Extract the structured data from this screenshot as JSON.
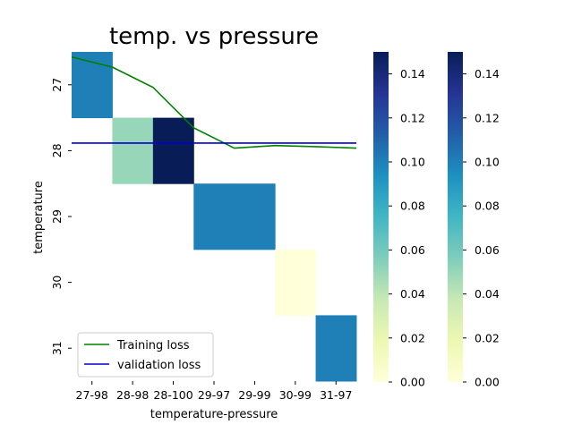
{
  "chart_data": {
    "type": "heatmap",
    "title": "temp. vs pressure",
    "xlabel": "temperature-pressure",
    "ylabel": "temperature",
    "x_categories": [
      "27-98",
      "28-98",
      "28-100",
      "29-97",
      "29-99",
      "30-99",
      "31-97"
    ],
    "y_categories": [
      "27",
      "28",
      "29",
      "30",
      "31"
    ],
    "cells": [
      {
        "row": "27",
        "col": "27-98",
        "value": 0.1
      },
      {
        "row": "28",
        "col": "28-98",
        "value": 0.05
      },
      {
        "row": "28",
        "col": "28-100",
        "value": 0.15
      },
      {
        "row": "29",
        "col": "29-97",
        "value": 0.1
      },
      {
        "row": "29",
        "col": "29-99",
        "value": 0.1
      },
      {
        "row": "30",
        "col": "30-99",
        "value": 0.0
      },
      {
        "row": "31",
        "col": "31-97",
        "value": 0.1
      }
    ],
    "color_range": [
      0,
      0.15
    ],
    "colormap": "YlGnBu",
    "colorbar_ticks": [
      "0.00",
      "0.02",
      "0.04",
      "0.06",
      "0.08",
      "0.10",
      "0.12",
      "0.14"
    ],
    "overlay_lines": [
      {
        "name": "Training loss",
        "color": "#008000",
        "x": [
          0,
          1,
          2,
          3,
          4,
          5,
          6,
          7
        ],
        "y": [
          0.064,
          0.062,
          0.058,
          0.05,
          0.046,
          0.0465,
          0.0463,
          0.046
        ]
      },
      {
        "name": "validation loss",
        "color": "#0000cc",
        "x": [
          0,
          1,
          2,
          3,
          4,
          5,
          6,
          7
        ],
        "y": [
          0.047,
          0.047,
          0.047,
          0.047,
          0.047,
          0.047,
          0.047,
          0.047
        ]
      }
    ],
    "legend_position": "lower-left",
    "colorbar_count": 2
  }
}
